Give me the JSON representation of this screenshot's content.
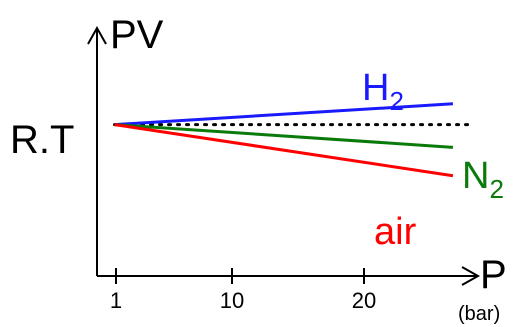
{
  "chart_data": {
    "type": "line",
    "ylabel": "PV",
    "xlabel": "P",
    "xunit": "(bar)",
    "y_reference_label": "R.T",
    "x_ticks": [
      "1",
      "10",
      "20"
    ],
    "series": [
      {
        "name": "H",
        "subscript": "2",
        "color": "#1a1aff",
        "x": [
          0,
          27
        ],
        "y": [
          0,
          0.055
        ]
      },
      {
        "name": "N",
        "subscript": "2",
        "color": "#0a7a0a",
        "x": [
          0,
          27
        ],
        "y": [
          0,
          -0.06
        ]
      },
      {
        "name": "air",
        "subscript": "",
        "color": "#ff0000",
        "x": [
          0,
          27
        ],
        "y": [
          0,
          -0.135
        ]
      }
    ],
    "reference_line": {
      "style": "dotted",
      "y": 0,
      "color": "#000000"
    },
    "ylim": [
      -0.4,
      0.25
    ],
    "xlim": [
      -1.4,
      29
    ]
  }
}
